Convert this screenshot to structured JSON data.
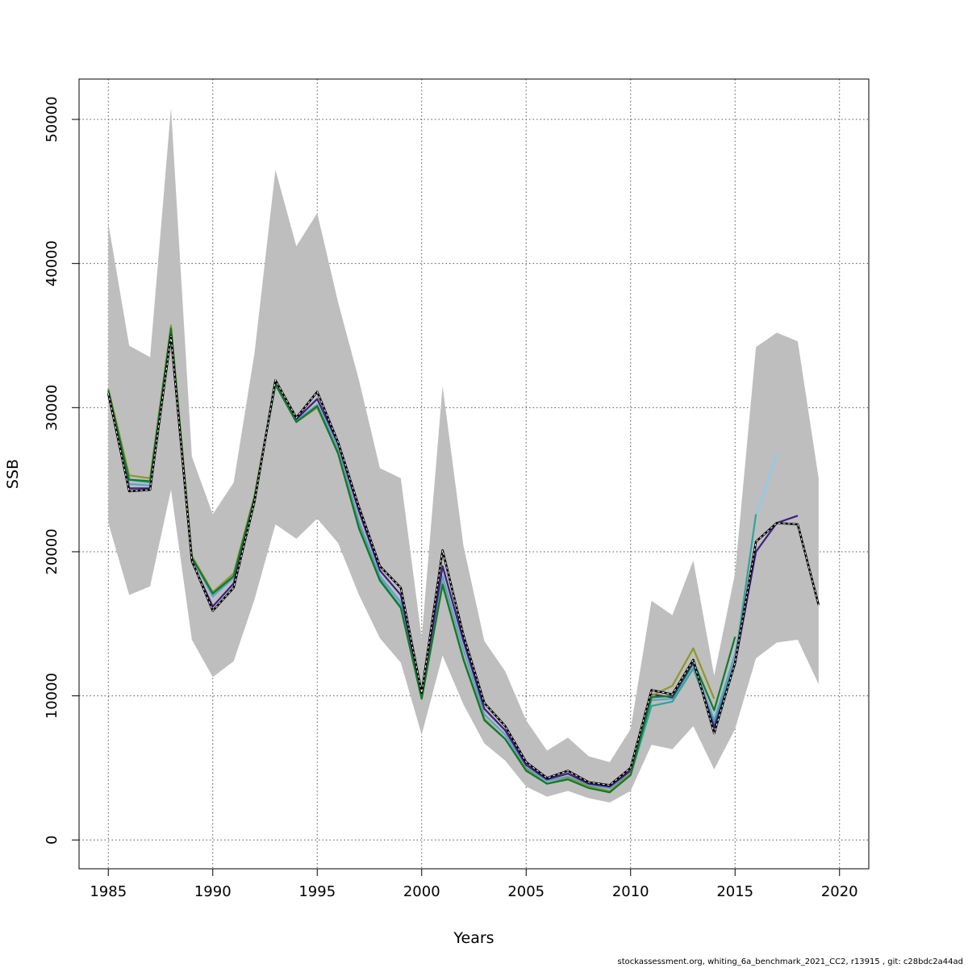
{
  "chart_data": {
    "type": "line",
    "title": "",
    "xlabel": "Years",
    "ylabel": "SSB",
    "xlim": [
      1983.6,
      2021.4
    ],
    "ylim": [
      -2000,
      52800
    ],
    "xticks": [
      1985,
      1990,
      1995,
      2000,
      2005,
      2010,
      2015,
      2020
    ],
    "yticks": [
      0,
      10000,
      20000,
      30000,
      40000,
      50000
    ],
    "grid": true,
    "legend": "none",
    "band": {
      "color": "#bebebe",
      "x": [
        1985,
        1986,
        1987,
        1988,
        1989,
        1990,
        1991,
        1992,
        1993,
        1994,
        1995,
        1996,
        1997,
        1998,
        1999,
        2000,
        2001,
        2002,
        2003,
        2004,
        2005,
        2006,
        2007,
        2008,
        2009,
        2010,
        2011,
        2012,
        2013,
        2014,
        2015,
        2016,
        2017,
        2018,
        2019
      ],
      "upper": [
        42800,
        34300,
        33500,
        50800,
        26600,
        22600,
        24800,
        33800,
        46500,
        41200,
        43500,
        37300,
        31900,
        25800,
        25100,
        14000,
        31500,
        20400,
        13800,
        11700,
        8300,
        6200,
        7100,
        5800,
        5400,
        7700,
        16600,
        15600,
        19400,
        11400,
        18500,
        34200,
        35200,
        34600,
        25100
      ],
      "lower": [
        22000,
        17000,
        17600,
        24300,
        13900,
        11300,
        12400,
        16700,
        21900,
        20900,
        22300,
        20600,
        17000,
        14000,
        12300,
        7300,
        12800,
        9400,
        6700,
        5500,
        3700,
        3000,
        3400,
        2900,
        2600,
        3400,
        6600,
        6300,
        7900,
        4900,
        7700,
        12600,
        13700,
        13900,
        10800
      ]
    },
    "series": [
      {
        "color": "#5ba3c9",
        "x": [
          1985,
          1986,
          1987,
          1988,
          1989,
          1990,
          1991,
          1992,
          1993,
          1994,
          1995,
          1996,
          1997,
          1998,
          1999,
          2000,
          2001,
          2002,
          2003,
          2004,
          2005,
          2006,
          2007,
          2008,
          2009,
          2010,
          2011,
          2012,
          2013,
          2014,
          2015,
          2016
        ],
        "values": [
          31000,
          24700,
          24600,
          35200,
          19600,
          16900,
          18200,
          23800,
          31700,
          29100,
          30200,
          27200,
          22100,
          18300,
          16500,
          9900,
          18300,
          13200,
          8700,
          7300,
          5000,
          4100,
          4400,
          3800,
          3600,
          4600,
          9700,
          9800,
          12200,
          8300,
          12900,
          20300
        ]
      },
      {
        "color": "#87ceeb",
        "x": [
          2016,
          2017
        ],
        "values": [
          22500,
          26800
        ]
      },
      {
        "color": "#2fa59a",
        "x": [
          1985,
          1986,
          1987,
          1988,
          1989,
          1990,
          1991,
          1992,
          1993,
          1994,
          1995,
          1996,
          1997,
          1998,
          1999,
          2000,
          2001,
          2002,
          2003,
          2004,
          2005,
          2006,
          2007,
          2008,
          2009,
          2010,
          2011,
          2012,
          2013,
          2014,
          2015,
          2016
        ],
        "values": [
          31100,
          25000,
          24800,
          35300,
          19600,
          17100,
          18300,
          23800,
          31600,
          29000,
          30100,
          26900,
          21800,
          18100,
          16200,
          9800,
          17800,
          12600,
          8400,
          7000,
          4900,
          3900,
          4300,
          3700,
          3400,
          4500,
          9300,
          9600,
          11900,
          8100,
          12400,
          22600
        ]
      },
      {
        "color": "#3f1e7f",
        "x": [
          1985,
          1986,
          1987,
          1988,
          1989,
          1990,
          1991,
          1992,
          1993,
          1994,
          1995,
          1996,
          1997,
          1998,
          1999,
          2000,
          2001,
          2002,
          2003,
          2004,
          2005,
          2006,
          2007,
          2008,
          2009,
          2010,
          2011,
          2012,
          2013,
          2014,
          2015,
          2016,
          2017,
          2018
        ],
        "values": [
          30900,
          24400,
          24400,
          35000,
          19300,
          16200,
          17800,
          23700,
          31800,
          29200,
          30600,
          27500,
          22800,
          18700,
          17000,
          10000,
          19000,
          13800,
          9100,
          7600,
          5200,
          4200,
          4600,
          3900,
          3700,
          4800,
          10100,
          9900,
          12300,
          7800,
          12200,
          20000,
          22000,
          22500
        ]
      },
      {
        "color": "#8f9629",
        "x": [
          1985,
          1986,
          1987,
          1988,
          1989,
          1990,
          1991,
          1992,
          1993,
          1994,
          1995,
          1996,
          1997,
          1998,
          1999,
          2000,
          2001,
          2002,
          2003,
          2004,
          2005,
          2006,
          2007,
          2008,
          2009,
          2010,
          2011,
          2012,
          2013,
          2014
        ],
        "values": [
          31300,
          25300,
          25100,
          35700,
          19700,
          17200,
          18500,
          23900,
          31700,
          29000,
          30000,
          26900,
          21700,
          18000,
          16100,
          9800,
          17800,
          12600,
          8400,
          7000,
          4900,
          3900,
          4300,
          3700,
          3400,
          4600,
          10000,
          10700,
          13300,
          9800
        ]
      },
      {
        "color": "#0e7a2f",
        "x": [
          1985,
          1986,
          1987,
          1988,
          1989,
          1990,
          1991,
          1992,
          1993,
          1994,
          1995,
          1996,
          1997,
          1998,
          1999,
          2000,
          2001,
          2002,
          2003,
          2004,
          2005,
          2006,
          2007,
          2008,
          2009,
          2010,
          2011,
          2012,
          2013,
          2014,
          2015
        ],
        "values": [
          31200,
          25000,
          24900,
          35500,
          19600,
          17100,
          18300,
          23800,
          31600,
          29000,
          30100,
          26800,
          21600,
          18000,
          16100,
          9800,
          17700,
          12500,
          8300,
          7000,
          4800,
          3900,
          4200,
          3600,
          3300,
          4500,
          9900,
          10000,
          12400,
          9000,
          14100
        ]
      },
      {
        "color": "#000000",
        "dash": true,
        "x": [
          1985,
          1986,
          1987,
          1988,
          1989,
          1990,
          1991,
          1992,
          1993,
          1994,
          1995,
          1996,
          1997,
          1998,
          1999,
          2000,
          2001,
          2002,
          2003,
          2004,
          2005,
          2006,
          2007,
          2008,
          2009,
          2010,
          2011,
          2012,
          2013,
          2014,
          2015,
          2016,
          2017,
          2018,
          2019
        ],
        "values": [
          31000,
          24200,
          24300,
          35000,
          19400,
          15900,
          17500,
          23500,
          31900,
          29300,
          31100,
          27600,
          23100,
          19000,
          17500,
          10200,
          20100,
          14200,
          9500,
          7900,
          5400,
          4300,
          4800,
          4000,
          3800,
          5000,
          10400,
          10100,
          12500,
          7400,
          12300,
          20700,
          22000,
          21900,
          16300
        ]
      }
    ]
  },
  "footer": {
    "text": "stockassessment.org, whiting_6a_benchmark_2021_CC2, r13915 , git: c28bdc2a44ad"
  }
}
